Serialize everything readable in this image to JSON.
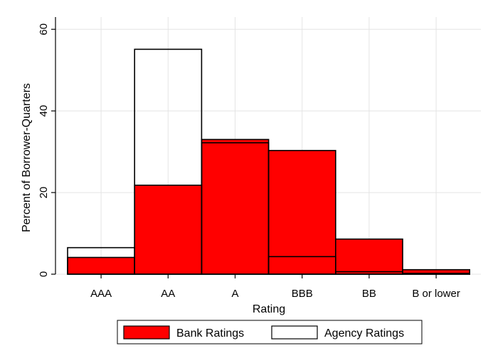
{
  "chart_data": {
    "type": "bar",
    "categories": [
      "AAA",
      "AA",
      "A",
      "BBB",
      "BB",
      "B or lower"
    ],
    "series": [
      {
        "name": "Bank Ratings",
        "values": [
          4.1,
          21.8,
          33.0,
          30.3,
          8.6,
          1.1
        ],
        "color": "#ff0000",
        "style": "filled"
      },
      {
        "name": "Agency Ratings",
        "values": [
          6.5,
          55.1,
          32.2,
          4.3,
          0.6,
          0.2
        ],
        "color": "#ffffff",
        "style": "outline"
      }
    ],
    "title": "",
    "xlabel": "Rating",
    "ylabel": "Percent of Borrower-Quarters",
    "ylim": [
      0,
      63
    ],
    "yticks": [
      0,
      20,
      40,
      60
    ],
    "grid": true,
    "legend_position": "bottom"
  }
}
